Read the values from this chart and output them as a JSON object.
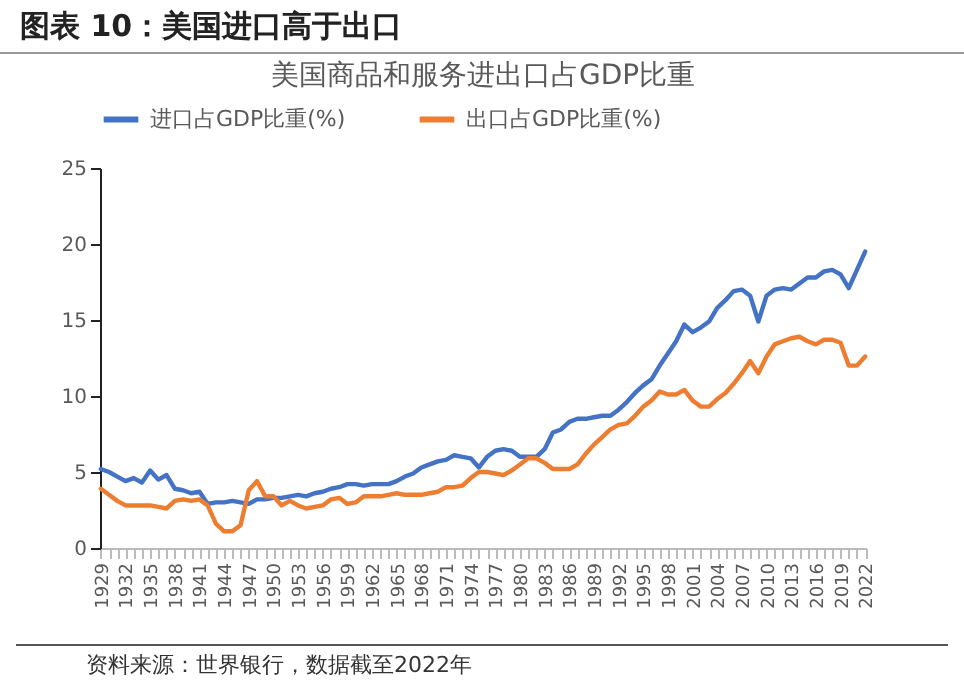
{
  "chart_data": {
    "type": "line",
    "title": "图表 10：美国进口高于出口",
    "subtitle": "美国商品和服务进出口占GDP比重",
    "annotations": [
      "资料来源：世界银行，数据截至2022年"
    ],
    "categories": [
      "1929",
      null,
      null,
      "1932",
      null,
      null,
      "1935",
      null,
      null,
      "1938",
      null,
      null,
      "1941",
      null,
      null,
      "1944",
      null,
      null,
      "1947",
      null,
      null,
      "1950",
      null,
      null,
      "1953",
      null,
      null,
      "1956",
      null,
      null,
      "1959",
      null,
      null,
      "1962",
      null,
      null,
      "1965",
      null,
      null,
      "1968",
      null,
      null,
      "1971",
      null,
      null,
      "1974",
      null,
      null,
      "1977",
      null,
      null,
      "1980",
      null,
      null,
      "1983",
      null,
      null,
      "1986",
      null,
      null,
      "1989",
      null,
      null,
      "1992",
      null,
      null,
      "1995",
      null,
      null,
      "1998",
      null,
      null,
      "2001",
      null,
      null,
      "2004",
      null,
      null,
      "2007",
      null,
      null,
      "2010",
      null,
      null,
      "2013",
      null,
      null,
      "2016",
      null,
      null,
      "2019",
      null,
      null,
      "2022"
    ],
    "series": [
      {
        "name": "进口占GDP比重(%)",
        "color": "#4472c4",
        "values": [
          5.2,
          5.0,
          4.7,
          4.4,
          4.6,
          4.3,
          5.1,
          4.5,
          4.8,
          3.9,
          3.8,
          3.6,
          3.7,
          2.9,
          3.0,
          3.0,
          3.1,
          3.0,
          2.9,
          3.2,
          3.2,
          3.3,
          3.3,
          3.4,
          3.5,
          3.4,
          3.6,
          3.7,
          3.9,
          4.0,
          4.2,
          4.2,
          4.1,
          4.2,
          4.2,
          4.2,
          4.4,
          4.7,
          4.9,
          5.3,
          5.5,
          5.7,
          5.8,
          6.1,
          6.0,
          5.9,
          5.3,
          6.0,
          6.4,
          6.5,
          6.4,
          6.0,
          6.0,
          6.0,
          6.5,
          7.6,
          7.8,
          8.3,
          8.5,
          8.5,
          8.6,
          8.7,
          8.7,
          9.1,
          9.6,
          10.2,
          10.7,
          11.1,
          12.0,
          12.8,
          13.6,
          14.7,
          14.2,
          14.5,
          14.9,
          15.8,
          16.3,
          16.9,
          17.0,
          16.6,
          14.9,
          16.6,
          17.0,
          17.1,
          17.0,
          17.4,
          17.8,
          17.8,
          18.2,
          18.3,
          18.0,
          17.1,
          18.3,
          19.5
        ]
      },
      {
        "name": "出口占GDP比重(%)",
        "color": "#ed7d31",
        "values": [
          3.9,
          3.5,
          3.1,
          2.8,
          2.8,
          2.8,
          2.8,
          2.7,
          2.6,
          3.1,
          3.2,
          3.1,
          3.2,
          2.8,
          1.6,
          1.1,
          1.1,
          1.5,
          3.8,
          4.4,
          3.4,
          3.4,
          2.8,
          3.1,
          2.8,
          2.6,
          2.7,
          2.8,
          3.2,
          3.3,
          2.9,
          3.0,
          3.4,
          3.4,
          3.4,
          3.5,
          3.6,
          3.5,
          3.5,
          3.5,
          3.6,
          3.7,
          4.0,
          4.0,
          4.1,
          4.6,
          5.0,
          5.0,
          4.9,
          4.8,
          5.1,
          5.5,
          5.9,
          5.9,
          5.6,
          5.2,
          5.2,
          5.2,
          5.5,
          6.2,
          6.8,
          7.3,
          7.8,
          8.1,
          8.2,
          8.7,
          9.3,
          9.7,
          10.3,
          10.1,
          10.1,
          10.4,
          9.7,
          9.3,
          9.3,
          9.8,
          10.2,
          10.8,
          11.5,
          12.3,
          11.5,
          12.6,
          13.4,
          13.6,
          13.8,
          13.9,
          13.6,
          13.4,
          13.7,
          13.7,
          13.5,
          12.0,
          12.0,
          12.6
        ]
      }
    ],
    "ylim": [
      0,
      25
    ],
    "yticks": [
      0,
      5,
      10,
      15,
      20,
      25
    ],
    "grid": false,
    "legend": "top",
    "marker": "none",
    "line_style": "solid"
  }
}
